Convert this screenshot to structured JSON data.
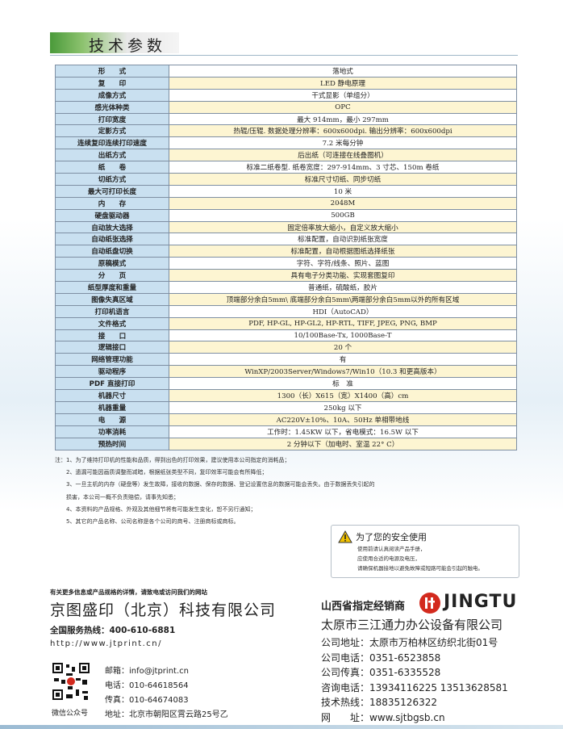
{
  "header": {
    "title": "技术参数"
  },
  "table": {
    "rows": [
      [
        "形　　式",
        "落地式"
      ],
      [
        "复　　印",
        "LED 静电原理"
      ],
      [
        "成像方式",
        "干式显影（单组分）"
      ],
      [
        "感光体种类",
        "OPC"
      ],
      [
        "打印宽度",
        "最大 914mm，最小 297mm"
      ],
      [
        "定影方式",
        "热辊/压辊. 数据处理分辨率：600x600dpi. 输出分辨率：600x600dpi"
      ],
      [
        "连续复印连续打印速度",
        "7.2 米每分钟"
      ],
      [
        "出纸方式",
        "后出纸（可连接在线叠图机）"
      ],
      [
        "纸　　卷",
        "标准二纸卷型. 纸卷宽度：297-914mm、3 寸芯、150m 卷纸"
      ],
      [
        "切纸方式",
        "标准尺寸切纸、同步切纸"
      ],
      [
        "最大可打印长度",
        "10 米"
      ],
      [
        "内　　存",
        "2048M"
      ],
      [
        "硬盘驱动器",
        "500GB"
      ],
      [
        "自动放大选择",
        "固定倍率放大缩小，自定义放大缩小"
      ],
      [
        "自动纸张选择",
        "标准配置，自动识别纸张宽度"
      ],
      [
        "自动纸盘切换",
        "标准配置，自动根据图纸选择纸张"
      ],
      [
        "原稿模式",
        "字符、字符/线条、照片、蓝图"
      ],
      [
        "分　　页",
        "具有电子分类功能、实现套图复印"
      ],
      [
        "纸型厚度和重量",
        "普通纸，硫酸纸，胶片"
      ],
      [
        "图像失真区域",
        "顶端部分余白5mm\\ 底端部分余白5mm\\两端部分余白5mm以外的所有区域"
      ],
      [
        "打印机语言",
        "HDI（AutoCAD）"
      ],
      [
        "文件格式",
        "PDF, HP-GL, HP-GL2, HP-RTL, TIFF, JPEG, PNG, BMP"
      ],
      [
        "接　　口",
        "10/100Base-Tx, 1000Base-T"
      ],
      [
        "逻辑接口",
        "20 个"
      ],
      [
        "网络管理功能",
        "有"
      ],
      [
        "驱动程序",
        "WinXP/2003Server/Windows7/Win10（10.3 和更高版本）"
      ],
      [
        "PDF 直接打印",
        "标　准"
      ],
      [
        "机器尺寸",
        "1300（长）X615（宽）X1400（高）cm"
      ],
      [
        "机器重量",
        "250kg 以下"
      ],
      [
        "电　　源",
        "AC220V±10%、10A、50Hz 单相带地线"
      ],
      [
        "功率消耗",
        "工作时：1.45KW 以下，省电模式：16.5W 以下"
      ],
      [
        "预热时间",
        "2 分钟以下（加电时、室温 22° C）"
      ]
    ]
  },
  "notes": [
    "注：1、为了维持打印机的性能和品质，得到出色的打印效果，建议使用本公司指定的消耗品；",
    "2、遗漏可能因画质调整而减暗，根据纸张类型不同，复印效率可能会有所降低；",
    "3、一旦主机的内存（硬盘等）发生故障，接收的数据、保存的数据、登记设置信息的数据可能会丢失。由于数据丢失引起的",
    "损害，本公司一概不负责赔偿，请事先知悉；",
    "4、本资料的产品规格、外观及其他细节将有可能发生变化，恕不另行通知；",
    "5、其它的产品名称、公司名称是各个公司的商号、注册商标或商标。"
  ],
  "safety": {
    "title": "为了您的安全使用",
    "lines": [
      "使用前请认真阅读产品手册，",
      "应使用合适的电源及电压，",
      "请确保机器接地以避免故障或短路可能会引起的触电。"
    ]
  },
  "footer": {
    "more_info": "有关更多信息或产品规格的详情，请致电或访问我们的网站",
    "company": "京图盛印（北京）科技有限公司",
    "hotline": "全国服务热线：400-610-6881",
    "url": "http://www.jtprint.cn/",
    "contacts": [
      "邮箱：info@jtprint.cn",
      "电话：010-64618564",
      "传真：010-64674083",
      "地址：北京市朝阳区霄云路25号乙"
    ],
    "qr_caption": "微信公众号"
  },
  "dealer": {
    "label": "山西省指定经销商",
    "brand": "JINGTU",
    "company": "太原市三江通力办公设备有限公司",
    "lines": [
      "公司地址：太原市万柏林区纺织北街01号",
      "公司电话：0351-6523858",
      "公司传真：0351-6335528",
      "咨询电话：13934116225 13513628581",
      "技术热线：18835126322",
      "网　　址：www.sjtbgsb.cn"
    ]
  }
}
